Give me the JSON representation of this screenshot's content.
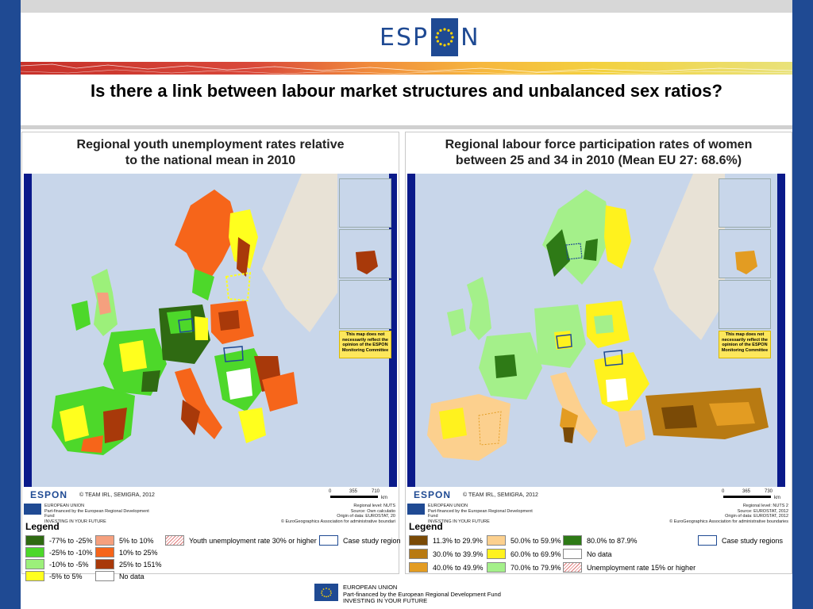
{
  "header": {
    "logo_left": "ESP",
    "logo_right": "N",
    "logo_accent": "#1f4a93"
  },
  "slide_title": "Is there a link between labour market structures and unbalanced sex ratios?",
  "left_map": {
    "title_line1": "Regional youth unemployment rates relative",
    "title_line2": "to the national mean in 2010",
    "disclaimer": "This map does not necessarily reflect the opinion of the ESPON Monitoring Committee",
    "espon": "ESPON",
    "credit": "© TEAM IRL, SEMIGRA, 2012",
    "scale_labels": [
      "0",
      "355",
      "710",
      "km"
    ],
    "eu_line1": "EUROPEAN UNION",
    "eu_line2": "Part-financed by the European Regional Development Fund",
    "eu_line3": "INVESTING IN YOUR FUTURE",
    "src_line1": "Regional level: NUTS",
    "src_line2": "Source: Own calculatio",
    "src_line3": "Origin of data: EUROSTAT, 20",
    "src_line4": "© EuroGeographics Association for administrative boundari",
    "legend_title": "Legend",
    "legend": [
      {
        "label": "-77% to -25%",
        "color": "#2f6a12"
      },
      {
        "label": "-25% to -10%",
        "color": "#4dd82a"
      },
      {
        "label": "-10% to -5%",
        "color": "#9cf07a"
      },
      {
        "label": "-5% to 5%",
        "color": "#ffff1e"
      },
      {
        "label": "5% to 10%",
        "color": "#f5a07e"
      },
      {
        "label": "10% to 25%",
        "color": "#f6651a"
      },
      {
        "label": "25% to 151%",
        "color": "#a8390a"
      },
      {
        "label": "No data",
        "color": "#ffffff"
      },
      {
        "label": "Youth unemployment rate 30% or higher",
        "color": "hatch"
      },
      {
        "label": "Case study region",
        "color": "box"
      }
    ]
  },
  "right_map": {
    "title_line1": "Regional labour force participation rates of women",
    "title_line2": "between 25 and 34 in 2010 (Mean EU 27: 68.6%)",
    "disclaimer": "This map does not necessarily reflect the opinion of the ESPON Monitoring Committee",
    "espon": "ESPON",
    "credit": "© TEAM IRL, SEMIGRA, 2012",
    "scale_labels": [
      "0",
      "365",
      "730",
      "km"
    ],
    "eu_line1": "EUROPEAN UNION",
    "eu_line2": "Part-financed by the European Regional Development Fund",
    "eu_line3": "INVESTING IN YOUR FUTURE",
    "src_line1": "Regional level: NUTS 2",
    "src_line2": "Source: EUROSTAT, 2012",
    "src_line3": "Origin of data: EUROSTAT, 2012",
    "src_line4": "© EuroGeographics Association for administrative boundaries",
    "legend_title": "Legend",
    "legend": [
      {
        "label": "11.3% to 29.9%",
        "color": "#7a4a06"
      },
      {
        "label": "30.0% to 39.9%",
        "color": "#b87a12"
      },
      {
        "label": "40.0% to 49.9%",
        "color": "#e39c22"
      },
      {
        "label": "50.0% to 59.9%",
        "color": "#fcd08e"
      },
      {
        "label": "60.0% to 69.9%",
        "color": "#fff21e"
      },
      {
        "label": "70.0% to 79.9%",
        "color": "#a4f08a"
      },
      {
        "label": "80.0% to 87.9%",
        "color": "#2e7a16"
      },
      {
        "label": "No data",
        "color": "#ffffff"
      },
      {
        "label": "Unemployment rate 15% or higher",
        "color": "hatch"
      },
      {
        "label": "Case study regions",
        "color": "box"
      }
    ]
  },
  "footer": {
    "line1": "EUROPEAN UNION",
    "line2": "Part-financed by the European Regional Development Fund",
    "line3": "INVESTING IN YOUR FUTURE"
  }
}
